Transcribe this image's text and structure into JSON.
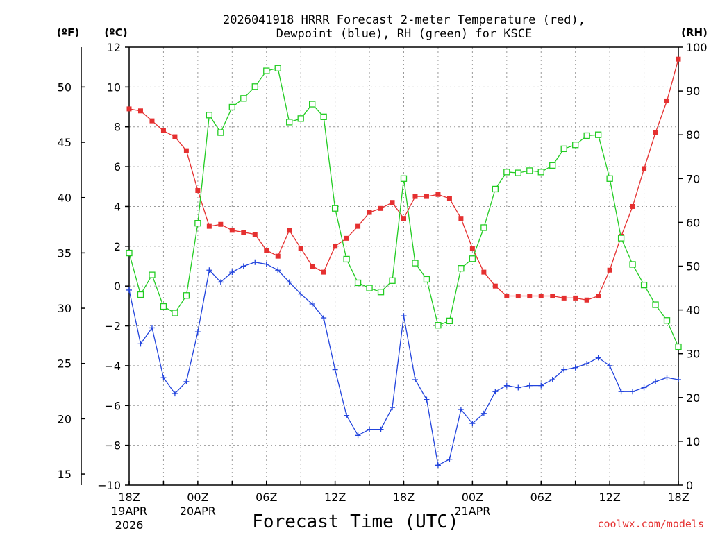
{
  "chart_data": {
    "type": "line",
    "title": "2026041918 HRRR Forecast 2-meter Temperature (red),",
    "title_line2": "Dewpoint (blue), RH (green) for KSCE",
    "xlabel": "Forecast Time (UTC)",
    "watermark": "coolwx.com/models",
    "unit_f": "(ºF)",
    "unit_c": "(ºC)",
    "unit_rh": "(RH)",
    "grid": true,
    "x_hours": [
      0,
      1,
      2,
      3,
      4,
      5,
      6,
      7,
      8,
      9,
      10,
      11,
      12,
      13,
      14,
      15,
      16,
      17,
      18,
      19,
      20,
      21,
      22,
      23,
      24,
      25,
      26,
      27,
      28,
      29,
      30,
      31,
      32,
      33,
      34,
      35,
      36,
      37,
      38,
      39,
      40,
      41,
      42,
      43,
      44,
      45,
      46,
      47,
      48
    ],
    "x_ticks": [
      {
        "h": 0,
        "label": "18Z",
        "sub1": "19APR",
        "sub2": "2026"
      },
      {
        "h": 6,
        "label": "00Z",
        "sub1": "20APR",
        "sub2": ""
      },
      {
        "h": 12,
        "label": "06Z",
        "sub1": "",
        "sub2": ""
      },
      {
        "h": 18,
        "label": "12Z",
        "sub1": "",
        "sub2": ""
      },
      {
        "h": 24,
        "label": "18Z",
        "sub1": "",
        "sub2": ""
      },
      {
        "h": 30,
        "label": "00Z",
        "sub1": "21APR",
        "sub2": ""
      },
      {
        "h": 36,
        "label": "06Z",
        "sub1": "",
        "sub2": ""
      },
      {
        "h": 42,
        "label": "12Z",
        "sub1": "",
        "sub2": ""
      },
      {
        "h": 48,
        "label": "18Z",
        "sub1": "",
        "sub2": ""
      }
    ],
    "ylim_c": [
      -10,
      12
    ],
    "ylim_rh": [
      0,
      100
    ],
    "ylim_f": [
      14,
      53.6
    ],
    "yticks_c": [
      "−10",
      "−8",
      "−6",
      "−4",
      "−2",
      "0",
      "2",
      "4",
      "6",
      "8",
      "10",
      "12"
    ],
    "yticks_c_values": [
      -10,
      -8,
      -6,
      -4,
      -2,
      0,
      2,
      4,
      6,
      8,
      10,
      12
    ],
    "yticks_f": [
      "15",
      "20",
      "25",
      "30",
      "35",
      "40",
      "45",
      "50"
    ],
    "yticks_f_values": [
      15,
      20,
      25,
      30,
      35,
      40,
      45,
      50
    ],
    "yticks_rh": [
      "0",
      "10",
      "20",
      "30",
      "40",
      "50",
      "60",
      "70",
      "80",
      "90",
      "100"
    ],
    "yticks_rh_values": [
      0,
      10,
      20,
      30,
      40,
      50,
      60,
      70,
      80,
      90,
      100
    ],
    "series": [
      {
        "name": "Temperature",
        "color": "#e53030",
        "marker": "filled-square",
        "axis": "c",
        "values": [
          8.9,
          8.8,
          8.3,
          7.8,
          7.5,
          6.8,
          4.8,
          3.0,
          3.1,
          2.8,
          2.7,
          2.6,
          1.8,
          1.5,
          2.8,
          1.9,
          1.0,
          0.7,
          2.0,
          2.4,
          3.0,
          3.7,
          3.9,
          4.2,
          3.4,
          4.5,
          4.5,
          4.6,
          4.4,
          3.4,
          1.9,
          0.7,
          0.0,
          -0.5,
          -0.5,
          -0.5,
          -0.5,
          -0.5,
          -0.6,
          -0.6,
          -0.7,
          -0.5,
          0.8,
          2.5,
          4.0,
          5.9,
          7.7,
          9.3,
          11.4
        ]
      },
      {
        "name": "Dewpoint",
        "color": "#2244dd",
        "marker": "plus",
        "axis": "c",
        "values": [
          -0.2,
          -2.9,
          -2.1,
          -4.6,
          -5.4,
          -4.8,
          -2.3,
          0.8,
          0.2,
          0.7,
          1.0,
          1.2,
          1.1,
          0.8,
          0.2,
          -0.4,
          -0.9,
          -1.6,
          -4.2,
          -6.5,
          -7.5,
          -7.2,
          -7.2,
          -6.1,
          -1.5,
          -4.7,
          -5.7,
          -9.0,
          -8.7,
          -6.2,
          -6.9,
          -6.4,
          -5.3,
          -5.0,
          -5.1,
          -5.0,
          -5.0,
          -4.7,
          -4.2,
          -4.1,
          -3.9,
          -3.6,
          -4.0,
          -5.3,
          -5.3,
          -5.1,
          -4.8,
          -4.6,
          -4.7
        ]
      },
      {
        "name": "RH",
        "color": "#22cc22",
        "marker": "open-square",
        "axis": "rh",
        "values": [
          53,
          43.5,
          48,
          40.8,
          39.3,
          43.3,
          59.8,
          84.5,
          80.5,
          86.3,
          88.3,
          91,
          94.6,
          95.2,
          82.9,
          83.7,
          87,
          84.1,
          63.2,
          51.6,
          46.2,
          45,
          44.1,
          46.7,
          70,
          50.7,
          47,
          36.5,
          37.5,
          49.5,
          51.7,
          58.8,
          67.6,
          71.5,
          71.3,
          71.8,
          71.5,
          73,
          76.8,
          77.7,
          79.8,
          80,
          70,
          56.4,
          50.4,
          45.7,
          41.2,
          37.6,
          31.6
        ]
      }
    ]
  }
}
